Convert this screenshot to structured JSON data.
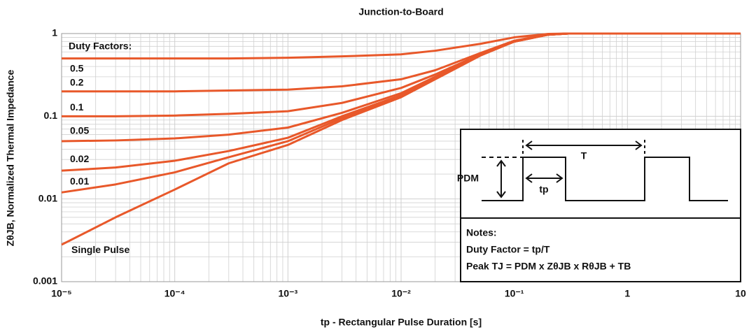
{
  "chart_data": {
    "type": "line",
    "title": "Junction-to-Board",
    "x_label": "tp - Rectangular Pulse Duration  [s]",
    "y_label": "ZθJB, Normalized Thermal Impedance",
    "annotation": "Duty Factors:",
    "log_x": true,
    "log_y": true,
    "grid": true,
    "x": [
      1e-05,
      3e-05,
      0.0001,
      0.0003,
      0.001,
      0.003,
      0.01,
      0.02,
      0.05,
      0.1,
      0.2,
      0.3,
      1,
      10
    ],
    "series": [
      {
        "name": "0.5",
        "color": "#e8582a",
        "values": [
          0.5,
          0.5,
          0.5,
          0.5,
          0.51,
          0.53,
          0.56,
          0.62,
          0.75,
          0.9,
          0.99,
          1,
          1,
          1
        ]
      },
      {
        "name": "0.2",
        "color": "#e8582a",
        "values": [
          0.2,
          0.2,
          0.2,
          0.205,
          0.21,
          0.23,
          0.28,
          0.36,
          0.58,
          0.82,
          0.98,
          1,
          1,
          1
        ]
      },
      {
        "name": "0.1",
        "color": "#e8582a",
        "values": [
          0.1,
          0.1,
          0.102,
          0.107,
          0.115,
          0.145,
          0.22,
          0.32,
          0.56,
          0.8,
          0.97,
          1,
          1,
          1
        ]
      },
      {
        "name": "0.05",
        "color": "#e8582a",
        "values": [
          0.05,
          0.051,
          0.054,
          0.06,
          0.073,
          0.11,
          0.19,
          0.3,
          0.55,
          0.8,
          0.97,
          1,
          1,
          1
        ]
      },
      {
        "name": "0.02",
        "color": "#e8582a",
        "values": [
          0.022,
          0.024,
          0.029,
          0.038,
          0.055,
          0.1,
          0.18,
          0.29,
          0.55,
          0.8,
          0.97,
          1,
          1,
          1
        ]
      },
      {
        "name": "0.01",
        "color": "#e8582a",
        "values": [
          0.012,
          0.015,
          0.021,
          0.032,
          0.05,
          0.095,
          0.175,
          0.29,
          0.55,
          0.8,
          0.97,
          1,
          1,
          1
        ]
      },
      {
        "name": "Single Pulse",
        "color": "#e8582a",
        "values": [
          0.0028,
          0.006,
          0.013,
          0.027,
          0.045,
          0.09,
          0.17,
          0.28,
          0.54,
          0.8,
          0.97,
          1,
          1,
          1
        ]
      }
    ],
    "xlim": [
      1e-05,
      10
    ],
    "xticks": [
      {
        "value": 1e-05,
        "label": "10⁻⁵"
      },
      {
        "value": 0.0001,
        "label": "10⁻⁴"
      },
      {
        "value": 0.001,
        "label": "10⁻³"
      },
      {
        "value": 0.01,
        "label": "10⁻²"
      },
      {
        "value": 0.1,
        "label": "10⁻¹"
      },
      1,
      10
    ],
    "ylim": [
      0.001,
      1
    ],
    "yticks": [
      0.001,
      0.01,
      0.1,
      1
    ],
    "inset": {
      "period_label": "T",
      "power_label": "PDM",
      "pulse_label": "tp",
      "notes_title": "Notes:",
      "notes": [
        "Duty Factor = tp/T",
        "Peak TJ = PDM x ZθJB x RθJB + TB"
      ]
    }
  }
}
